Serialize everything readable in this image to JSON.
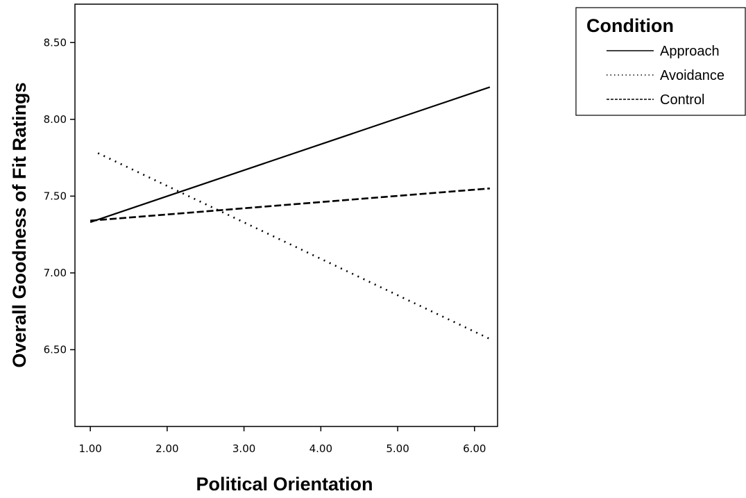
{
  "chart_data": {
    "type": "line",
    "title": "",
    "xlabel": "Political Orientation",
    "ylabel": "Overall Goodness of Fit Ratings",
    "xlim": [
      0.8,
      6.3
    ],
    "ylim": [
      6.0,
      8.75
    ],
    "x_ticks": [
      "1.00",
      "2.00",
      "3.00",
      "4.00",
      "5.00",
      "6.00"
    ],
    "y_ticks": [
      "6.50",
      "7.00",
      "7.50",
      "8.00",
      "8.50"
    ],
    "grid": false,
    "legend": {
      "title": "Condition",
      "position": "right-outside-top"
    },
    "series": [
      {
        "name": "Approach",
        "style": "solid",
        "x": [
          1.0,
          6.2
        ],
        "y": [
          7.33,
          8.21
        ]
      },
      {
        "name": "Avoidance",
        "style": "dotted",
        "x": [
          1.1,
          6.2
        ],
        "y": [
          7.78,
          6.57
        ]
      },
      {
        "name": "Control",
        "style": "dashed",
        "x": [
          1.0,
          6.2
        ],
        "y": [
          7.34,
          7.55
        ]
      }
    ]
  }
}
